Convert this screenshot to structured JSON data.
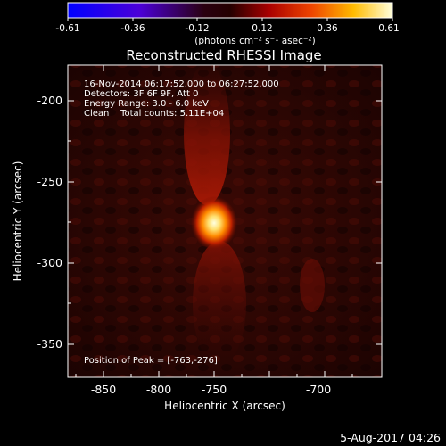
{
  "colorbar": {
    "ticks": [
      "-0.61",
      "-0.36",
      "-0.12",
      "0.12",
      "0.36",
      "0.61"
    ],
    "unit_label": "(photons cm⁻² s⁻¹ asec⁻²)"
  },
  "title": "Reconstructed RHESSI Image",
  "info": {
    "line1": "16-Nov-2014 06:17:52.000 to 06:27:52.000",
    "line2": "Detectors: 3F 6F 9F, Att 0",
    "line3": "Energy Range: 3.0 - 6.0 keV",
    "line4": "Clean    Total counts: 5.11E+04"
  },
  "peak_label": "Position of Peak = [-763,-276]",
  "x_axis": {
    "label": "Heliocentric X (arcsec)",
    "ticks": [
      "-850",
      "-800",
      "-750",
      "-700"
    ]
  },
  "y_axis": {
    "label": "Heliocentric Y (arcsec)",
    "ticks": [
      "-200",
      "-250",
      "-300",
      "-350"
    ]
  },
  "footer_date": "5-Aug-2017 04:26",
  "colors": {
    "background": "#000000",
    "foreground": "#ffffff"
  }
}
